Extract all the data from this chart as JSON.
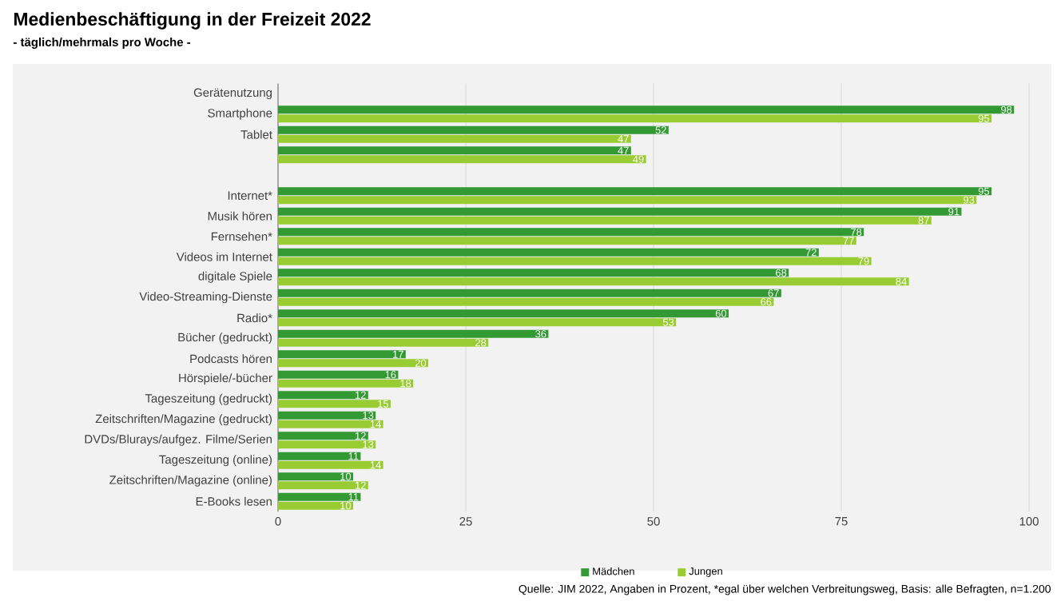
{
  "chart_data": {
    "type": "bar",
    "orientation": "horizontal",
    "title": "Medienbeschäftigung in der Freizeit 2022",
    "subtitle": "- täglich/mehrmals pro Woche -",
    "categories": [
      "Gerätenutzung",
      "Smartphone",
      "Tablet",
      null,
      null,
      "Internet*",
      "Musik hören",
      "Fernsehen*",
      "Videos im Internet",
      "digitale Spiele",
      "Video-Streaming-Dienste",
      "Radio*",
      "Bücher (gedruckt)",
      "Podcasts hören",
      "Hörspiele/-bücher",
      "Tageszeitung (gedruckt)",
      "Zeitschriften/Magazine (gedruckt)",
      "DVDs/Blurays/aufgez. Filme/Serien",
      "Tageszeitung (online)",
      "Zeitschriften/Magazine (online)",
      "E-Books lesen"
    ],
    "series": [
      {
        "name": "Mädchen",
        "color": "#339933",
        "values": [
          null,
          98,
          52,
          47,
          null,
          95,
          91,
          78,
          72,
          68,
          67,
          60,
          36,
          17,
          16,
          12,
          13,
          12,
          11,
          10,
          11
        ]
      },
      {
        "name": "Jungen",
        "color": "#99cc33",
        "values": [
          null,
          95,
          47,
          49,
          null,
          93,
          87,
          77,
          79,
          84,
          66,
          53,
          28,
          20,
          18,
          15,
          14,
          13,
          14,
          12,
          10
        ]
      }
    ],
    "xlim": [
      0,
      100
    ],
    "xticks": [
      0,
      25,
      50,
      75,
      100
    ],
    "grid": "x",
    "legend": "bottom",
    "data_labels": true,
    "annotations": [
      "Quelle: JIM 2022, Angaben in Prozent, *egal über welchen Verbreitungsweg, Basis: alle Befragten, n=1.200"
    ]
  }
}
